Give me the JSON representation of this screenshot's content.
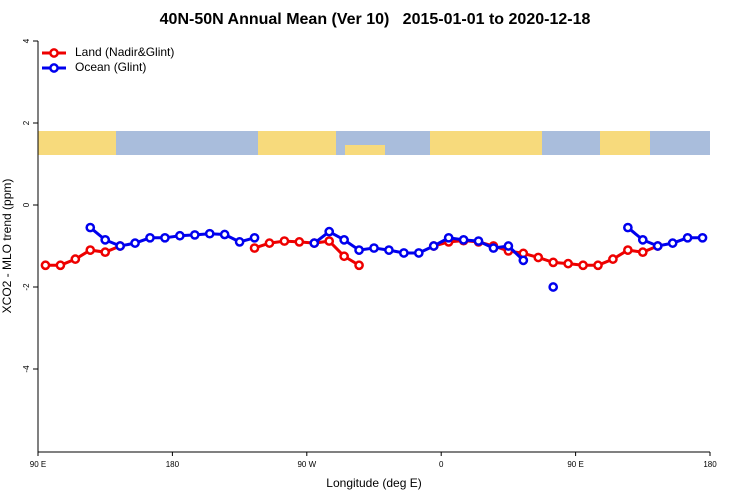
{
  "chart_data": {
    "type": "line",
    "title": "40N-50N Annual Mean (Ver 10)   2015-01-01 to 2020-12-18",
    "x_label": "Longitude (deg E)",
    "y_label": "XCO2 - MLO trend (ppm)",
    "x": [
      95,
      105,
      115,
      125,
      135,
      145,
      155,
      165,
      175,
      185,
      195,
      205,
      215,
      225,
      235,
      245,
      255,
      265,
      275,
      285,
      295,
      305,
      315,
      325,
      335,
      345,
      355,
      365,
      375,
      385,
      395,
      405,
      415,
      425,
      435,
      445,
      455,
      465,
      475,
      485,
      495,
      505,
      515,
      525,
      535
    ],
    "series": [
      {
        "name": "Land (Nadir&Glint)",
        "color": "#ee0000",
        "values": [
          -1.47,
          -1.47,
          -1.32,
          -1.1,
          -1.15,
          -1.0,
          null,
          null,
          null,
          null,
          null,
          null,
          null,
          null,
          -1.05,
          -0.93,
          -0.88,
          -0.9,
          -0.93,
          -0.88,
          -1.25,
          -1.47,
          null,
          null,
          null,
          null,
          -1.0,
          -0.9,
          -0.87,
          -0.9,
          -1.0,
          -1.12,
          -1.18,
          -1.28,
          -1.4,
          -1.43,
          -1.47,
          -1.47,
          -1.32,
          -1.1,
          -1.15,
          -1.0,
          null,
          null,
          null
        ]
      },
      {
        "name": "Ocean (Glint)",
        "color": "#0000ee",
        "values": [
          null,
          null,
          null,
          -0.55,
          -0.85,
          -1.0,
          -0.93,
          -0.8,
          -0.8,
          -0.75,
          -0.73,
          -0.7,
          -0.72,
          -0.9,
          -0.8,
          null,
          null,
          null,
          -0.93,
          -0.65,
          -0.85,
          -1.1,
          -1.05,
          -1.1,
          -1.17,
          -1.17,
          -1.0,
          -0.8,
          -0.85,
          -0.88,
          -1.05,
          -1.0,
          -1.35,
          null,
          -2.0,
          null,
          null,
          null,
          null,
          -0.55,
          -0.85,
          -1.0,
          -0.93,
          -0.8,
          -0.8
        ]
      }
    ],
    "xlim": [
      90,
      540
    ],
    "xticks": [
      {
        "value": 90,
        "label": "90 E"
      },
      180,
      {
        "value": 270,
        "label": "90 W"
      },
      {
        "value": 360,
        "label": "0"
      },
      {
        "value": 450,
        "label": "90 E"
      },
      {
        "value": 540,
        "label": "180"
      }
    ],
    "ylim": [
      -6,
      4
    ],
    "yticks": [
      4,
      2,
      0,
      -2,
      -4
    ],
    "legend": "top-left"
  }
}
